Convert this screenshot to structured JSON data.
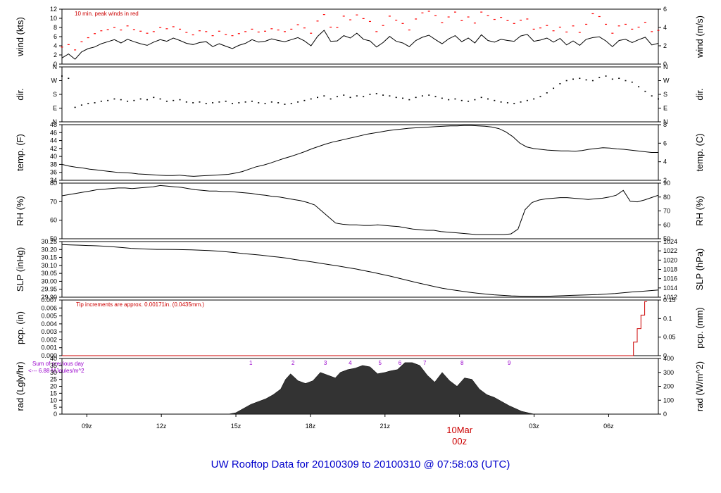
{
  "page": {
    "footer_title": "UW Rooftop Data for 20100309  to  20100310 @ 07:58:03  (UTC)"
  },
  "colors": {
    "axis": "#000000",
    "peak_wind": "#ff0000",
    "precip": "#cc0000",
    "rad_fill": "#333333",
    "purple_text": "#9900cc",
    "date_label": "#cc0000",
    "footer": "#0000cc"
  },
  "time_axis": {
    "ticks": [
      "09z",
      "12z",
      "15z",
      "18z",
      "21z",
      "03z",
      "06z"
    ],
    "date_tick": {
      "day": "10Mar",
      "hour": "00z"
    }
  },
  "chart_data": [
    {
      "id": "wind",
      "type": "line",
      "ylabel_left": "wind (kts)",
      "ylabel_right": "wind (m/s)",
      "left_ticks": [
        "0",
        "2",
        "4",
        "6",
        "8",
        "10",
        "12"
      ],
      "right_ticks": [
        "0",
        "2",
        "4",
        "6"
      ],
      "ylim": [
        0,
        13.5
      ],
      "annotation": "10 min. peak winds in red",
      "series": [
        {
          "values": [
            1.5,
            2.5,
            1.2,
            3.0,
            3.8,
            4.2,
            5.0,
            5.5,
            6.0,
            5.2,
            6.1,
            5.5,
            5.0,
            4.6,
            5.4,
            6.0,
            5.6,
            6.4,
            5.8,
            5.1,
            4.8,
            5.3,
            5.5,
            4.3,
            5.0,
            4.4,
            3.8,
            4.6,
            5.1,
            6.0,
            5.4,
            5.6,
            6.2,
            5.8,
            5.5,
            6.0,
            6.5,
            5.7,
            4.5,
            6.8,
            8.3,
            5.6,
            5.7,
            7.0,
            6.4,
            7.6,
            6.1,
            5.7,
            4.2,
            5.3,
            6.8,
            5.6,
            5.2,
            4.3,
            5.8,
            6.6,
            7.1,
            6.0,
            5.0,
            6.2,
            7.0,
            5.5,
            6.4,
            5.2,
            7.2,
            5.8,
            5.4,
            6.1,
            5.8,
            5.6,
            6.9,
            7.3,
            5.6,
            5.9,
            6.4,
            5.4,
            6.3,
            4.7,
            5.7,
            4.6,
            6.1,
            6.5,
            6.7,
            5.7,
            4.3,
            5.8,
            6.1,
            5.3,
            6.0,
            6.6,
            4.7,
            5.1
          ],
          "peaks": [
            4.2,
            4.8,
            3.5,
            5.5,
            6.5,
            7.5,
            8.2,
            8.5,
            9.0,
            8.4,
            9.4,
            8.5,
            8.1,
            7.6,
            8.0,
            9.0,
            8.7,
            9.2,
            8.6,
            7.8,
            7.2,
            8.2,
            8.0,
            7.0,
            8.1,
            7.3,
            7.0,
            7.5,
            8.0,
            8.6,
            7.9,
            8.1,
            8.7,
            8.4,
            8.0,
            8.6,
            9.7,
            8.9,
            7.6,
            10.6,
            12.2,
            9.1,
            9.0,
            11.8,
            10.9,
            12.1,
            11.2,
            10.5,
            8.0,
            9.5,
            11.8,
            10.8,
            10.0,
            8.4,
            11.1,
            12.6,
            13.0,
            11.9,
            10.2,
            11.6,
            12.8,
            10.7,
            11.6,
            10.1,
            12.8,
            11.9,
            11.0,
            11.5,
            10.7,
            10.0,
            10.8,
            11.1,
            8.6,
            8.9,
            9.5,
            8.2,
            9.1,
            7.9,
            9.4,
            7.8,
            9.8,
            12.4,
            11.7,
            9.8,
            7.6,
            9.4,
            9.8,
            8.6,
            9.1,
            10.3,
            8.0,
            8.3
          ]
        }
      ]
    },
    {
      "id": "dir",
      "type": "scatter",
      "ylabel_left": "dir.",
      "ylabel_right": "dir.",
      "left_ticks": [
        "N",
        "E",
        "S",
        "W",
        "N"
      ],
      "right_ticks": [
        "N",
        "E",
        "S",
        "W",
        "N"
      ],
      "ylim": [
        0,
        360
      ],
      "series": [
        {
          "values": [
            300,
            285,
            95,
            110,
            120,
            125,
            135,
            140,
            150,
            145,
            135,
            140,
            150,
            145,
            160,
            150,
            135,
            140,
            145,
            130,
            125,
            130,
            120,
            125,
            130,
            135,
            120,
            125,
            130,
            135,
            125,
            120,
            130,
            125,
            115,
            120,
            130,
            140,
            150,
            160,
            170,
            150,
            165,
            175,
            160,
            170,
            165,
            180,
            185,
            175,
            170,
            160,
            155,
            145,
            160,
            170,
            175,
            165,
            155,
            145,
            150,
            140,
            135,
            145,
            160,
            150,
            140,
            130,
            125,
            120,
            130,
            140,
            150,
            165,
            190,
            220,
            250,
            270,
            280,
            285,
            275,
            270,
            290,
            300,
            280,
            285,
            270,
            260,
            230,
            200,
            170,
            150
          ]
        }
      ]
    },
    {
      "id": "temp",
      "type": "line",
      "ylabel_left": "temp. (F)",
      "ylabel_right": "temp. (C)",
      "left_ticks": [
        "34",
        "36",
        "38",
        "40",
        "42",
        "44",
        "46",
        "48"
      ],
      "right_ticks": [
        "2",
        "4",
        "6",
        "8"
      ],
      "ylim": [
        34,
        48
      ],
      "series": [
        {
          "values": [
            38.0,
            37.6,
            37.3,
            37.1,
            36.8,
            36.6,
            36.4,
            36.2,
            36.0,
            35.9,
            35.8,
            35.6,
            35.5,
            35.4,
            35.3,
            35.2,
            35.2,
            35.3,
            35.1,
            35.0,
            35.1,
            35.2,
            35.3,
            35.4,
            35.5,
            35.8,
            36.2,
            36.8,
            37.4,
            37.8,
            38.3,
            38.9,
            39.5,
            40.0,
            40.6,
            41.2,
            41.9,
            42.5,
            43.1,
            43.6,
            44.0,
            44.4,
            44.8,
            45.2,
            45.6,
            45.9,
            46.2,
            46.5,
            46.7,
            46.9,
            47.1,
            47.2,
            47.3,
            47.4,
            47.5,
            47.6,
            47.7,
            47.7,
            47.8,
            47.8,
            47.7,
            47.6,
            47.4,
            47.0,
            46.2,
            45.0,
            43.4,
            42.4,
            42.0,
            41.8,
            41.6,
            41.5,
            41.4,
            41.4,
            41.3,
            41.5,
            41.8,
            42.0,
            42.2,
            42.1,
            41.9,
            41.8,
            41.6,
            41.4,
            41.2,
            41.0,
            41.0
          ]
        }
      ]
    },
    {
      "id": "rh",
      "type": "line",
      "ylabel_left": "RH (%)",
      "ylabel_right": "RH (%)",
      "left_ticks": [
        "50",
        "60",
        "70",
        "80"
      ],
      "right_ticks": [
        "50",
        "60",
        "70",
        "80",
        "90"
      ],
      "ylim": [
        44,
        90
      ],
      "series": [
        {
          "values": [
            79.5,
            80.5,
            81.5,
            82.5,
            83.5,
            84.5,
            85.0,
            85.5,
            86.0,
            86.0,
            85.5,
            86.0,
            86.5,
            87.0,
            88.0,
            87.5,
            87.0,
            86.5,
            85.5,
            84.5,
            84.0,
            83.5,
            83.5,
            83.0,
            83.0,
            82.5,
            82.0,
            81.5,
            80.5,
            80.0,
            79.0,
            78.5,
            77.5,
            76.5,
            75.5,
            74.0,
            72.0,
            67.0,
            62.0,
            57.0,
            56.0,
            55.5,
            55.5,
            55.0,
            55.0,
            55.5,
            55.0,
            54.5,
            54.0,
            53.0,
            52.0,
            51.5,
            51.0,
            51.0,
            50.0,
            49.5,
            49.0,
            48.5,
            48.0,
            47.5,
            47.5,
            47.5,
            47.5,
            47.5,
            48.0,
            52.0,
            68.0,
            74.0,
            76.0,
            77.0,
            77.5,
            78.0,
            78.0,
            77.5,
            77.0,
            76.5,
            77.0,
            77.5,
            78.5,
            80.0,
            84.0,
            75.0,
            74.5,
            76.0,
            78.0,
            80.0
          ]
        }
      ]
    },
    {
      "id": "slp",
      "type": "line",
      "ylabel_left": "SLP (inHg)",
      "ylabel_right": "SLP (hPa)",
      "left_ticks": [
        "29.90",
        "29.95",
        "30.00",
        "30.05",
        "30.10",
        "30.15",
        "30.20",
        "30.25"
      ],
      "right_ticks": [
        "1012",
        "1014",
        "1016",
        "1018",
        "1020",
        "1022",
        "1024"
      ],
      "ylim": [
        29.89,
        30.26
      ],
      "series": [
        {
          "values": [
            30.24,
            30.238,
            30.236,
            30.234,
            30.232,
            30.229,
            30.225,
            30.22,
            30.215,
            30.212,
            30.21,
            30.208,
            30.208,
            30.207,
            30.206,
            30.205,
            30.203,
            30.2,
            30.197,
            30.192,
            30.187,
            30.18,
            30.175,
            30.17,
            30.163,
            30.157,
            30.15,
            30.14,
            30.132,
            30.124,
            30.115,
            30.106,
            30.097,
            30.087,
            30.078,
            30.066,
            30.055,
            30.042,
            30.03,
            30.016,
            30.002,
            29.988,
            29.975,
            29.962,
            29.95,
            29.94,
            29.932,
            29.924,
            29.917,
            29.911,
            29.906,
            29.902,
            29.899,
            29.897,
            29.896,
            29.895,
            29.896,
            29.898,
            29.9,
            29.902,
            29.904,
            29.906,
            29.908,
            29.911,
            29.915,
            29.92,
            29.925,
            29.929,
            29.933,
            29.938
          ]
        }
      ]
    },
    {
      "id": "pcp",
      "type": "line",
      "ylabel_left": "pcp. (in)",
      "ylabel_right": "pcp. (mm)",
      "left_ticks": [
        "0.000",
        "0.001",
        "0.002",
        "0.003",
        "0.004",
        "0.005",
        "0.006",
        "0.007"
      ],
      "right_ticks": [
        "0",
        "0.05",
        "0.1",
        "0.15"
      ],
      "ylim": [
        0,
        0.007
      ],
      "annotation": "Tip increments are approx. 0.00171in. (0.0435mm.)",
      "steps": [
        {
          "hour": 0.0,
          "value": 0
        },
        {
          "hour": 23.0,
          "value": 0
        },
        {
          "hour": 23.0,
          "value": 0.0017
        },
        {
          "hour": 23.15,
          "value": 0.0017
        },
        {
          "hour": 23.15,
          "value": 0.0034
        },
        {
          "hour": 23.3,
          "value": 0.0034
        },
        {
          "hour": 23.3,
          "value": 0.0051
        },
        {
          "hour": 23.45,
          "value": 0.0051
        },
        {
          "hour": 23.45,
          "value": 0.0068
        },
        {
          "hour": 23.55,
          "value": 0.0068
        }
      ]
    },
    {
      "id": "rad",
      "type": "area",
      "ylabel_left": "rad (Lgly/hr)",
      "ylabel_right": "rad (W/m^2)",
      "left_ticks": [
        "0",
        "5",
        "10",
        "15",
        "20",
        "25",
        "30",
        "35",
        "40"
      ],
      "right_ticks": [
        "0",
        "100",
        "200",
        "300",
        "400"
      ],
      "ylim": [
        0,
        40
      ],
      "annotation_lines": [
        "Sum of previous day",
        "<--- 6.88 MJoules/m^2"
      ],
      "hour_markers": [
        "1",
        "2",
        "3",
        "4",
        "5",
        "6",
        "7",
        "8",
        "9"
      ],
      "x_hours": [
        6.7,
        7.0,
        7.3,
        7.6,
        7.9,
        8.2,
        8.5,
        8.8,
        9.0,
        9.2,
        9.5,
        9.8,
        10.1,
        10.4,
        10.7,
        11.0,
        11.2,
        11.5,
        11.8,
        12.1,
        12.4,
        12.7,
        13.0,
        13.2,
        13.5,
        13.8,
        14.1,
        14.4,
        14.7,
        15.0,
        15.3,
        15.6,
        15.9,
        16.2,
        16.5,
        16.8,
        17.1,
        17.4,
        17.7,
        18.0,
        18.5,
        19.0
      ],
      "values": [
        0,
        1,
        4,
        7,
        9,
        11,
        14,
        18,
        25,
        29,
        24,
        22,
        24,
        30,
        28,
        26,
        30,
        32,
        33,
        35,
        34,
        29,
        30,
        31,
        32,
        37,
        37,
        35,
        28,
        23,
        30,
        24,
        20,
        26,
        25,
        18,
        14,
        12,
        9,
        6,
        2,
        0
      ]
    }
  ]
}
